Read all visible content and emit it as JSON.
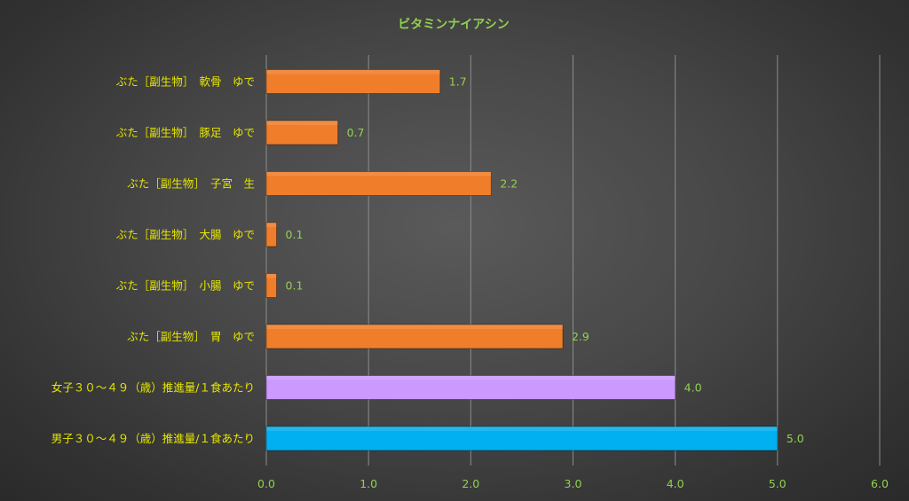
{
  "chart_data": {
    "type": "bar",
    "orientation": "horizontal",
    "title": "ビタミンナイアシン",
    "xlabel": "",
    "ylabel": "",
    "xlim": [
      0,
      6
    ],
    "x_ticks": [
      "0.0",
      "1.0",
      "2.0",
      "3.0",
      "4.0",
      "5.0",
      "6.0"
    ],
    "grid": "vertical",
    "legend": "none",
    "colors": {
      "title": "#92d050",
      "category_label": "#e6e600",
      "value_label": "#92d050",
      "tick_label": "#92d050",
      "gridline": "#8c8c8c"
    },
    "bars": [
      {
        "category": "ぶた［副生物］　軟骨　ゆで",
        "value": 1.7,
        "label": "1.7",
        "color": "#f07d2a"
      },
      {
        "category": "ぶた［副生物］　豚足　ゆで",
        "value": 0.7,
        "label": "0.7",
        "color": "#f07d2a"
      },
      {
        "category": "ぶた［副生物］　子宮　生",
        "value": 2.2,
        "label": "2.2",
        "color": "#f07d2a"
      },
      {
        "category": "ぶた［副生物］　大腸　ゆで",
        "value": 0.1,
        "label": "0.1",
        "color": "#f07d2a"
      },
      {
        "category": "ぶた［副生物］　小腸　ゆで",
        "value": 0.1,
        "label": "0.1",
        "color": "#f07d2a"
      },
      {
        "category": "ぶた［副生物］　胃　ゆで",
        "value": 2.9,
        "label": "2.9",
        "color": "#f07d2a"
      },
      {
        "category": "女子３０～４９（歳）推進量/１食あたり",
        "value": 4.0,
        "label": "4.0",
        "color": "#cc99ff"
      },
      {
        "category": "男子３０～４９（歳）推進量/１食あたり",
        "value": 5.0,
        "label": "5.0",
        "color": "#00b0f0"
      }
    ]
  }
}
